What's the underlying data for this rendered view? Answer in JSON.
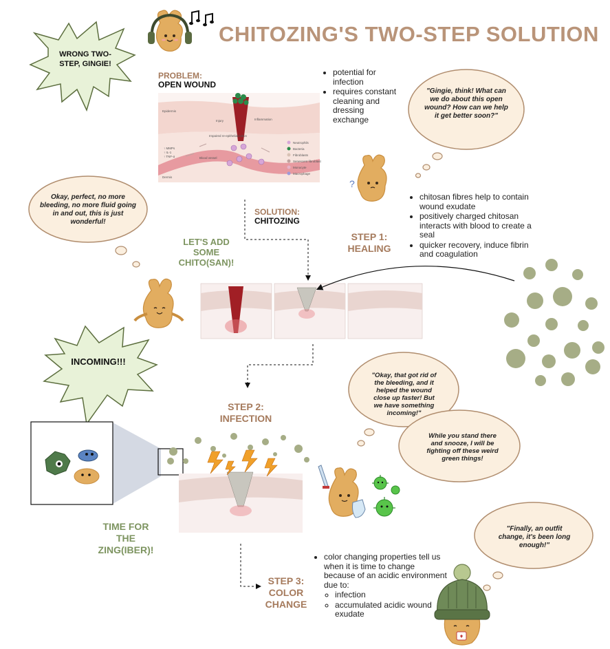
{
  "title": "CHITOZING'S TWO-STEP SOLUTION",
  "colors": {
    "title": "#b99479",
    "brown": "#a57a5c",
    "green": "#7d9460",
    "bubble_fill": "#fbefdf",
    "bubble_stroke": "#b08d6e",
    "burst_fill": "#e8f2d8",
    "burst_stroke": "#5c6e3e",
    "dot": "#a6ad86"
  },
  "bursts": {
    "top": "WRONG TWO-STEP, GINGIE!",
    "middle": "INCOMING!!!"
  },
  "problem": {
    "label": "PROBLEM:",
    "value": "OPEN WOUND",
    "bullets": [
      "potential for infection",
      "requires constant cleaning and dressing exchange"
    ]
  },
  "problem_diagram": {
    "labels": [
      "Epidermis",
      "Injury",
      "Inflammation",
      "Impaired re-epithelialization",
      "↑ MMPs",
      "↑ IL-1",
      "↑ TNF-α",
      "Blood vessel",
      "Dermis"
    ],
    "legend": [
      "Neutrophils",
      "Bacteria",
      "Fibroblasts",
      "Senescent fibroblast",
      "Monocyte",
      "Macrophage"
    ]
  },
  "bubbles": {
    "think": "\"Gingie, think! What can we do about this open wound? How can we help it get better soon?\"",
    "perfect": "Okay, perfect, no more bleeding, no more fluid going in and out, this is just wonderful!",
    "okay": "\"Okay, that got rid of the bleeding, and it helped the wound close up faster! But we have something incoming!\"",
    "snooze": "While you stand there and snooze, I will be fighting off these weird green things!",
    "outfit": "\"Finally, an outfit change, it's been long enough!\""
  },
  "solution": {
    "label": "SOLUTION:",
    "value": "CHITOZING"
  },
  "chito": "LET'S ADD SOME CHITO(SAN)!",
  "step1": {
    "label": "STEP 1: HEALING",
    "bullets": [
      "chitosan fibres help to contain wound exudate",
      "positively charged chitosan interacts with blood to create a seal",
      "quicker recovery, induce fibrin and coagulation"
    ]
  },
  "step2": {
    "label": "STEP 2: INFECTION"
  },
  "zing": "TIME FOR THE ZING(IBER)!",
  "step3": {
    "label": "STEP 3: COLOR CHANGE",
    "bullet": "color changing properties tell us when it is time to change because of an acidic environment due to:",
    "sub_bullets": [
      "infection",
      "accumulated acidic wound exudate"
    ]
  },
  "icons": [
    "headphones-icon",
    "music-notes-icon",
    "ginger-mascot-icon",
    "sword-icon",
    "shield-icon",
    "virus-icon",
    "beanie-icon"
  ]
}
